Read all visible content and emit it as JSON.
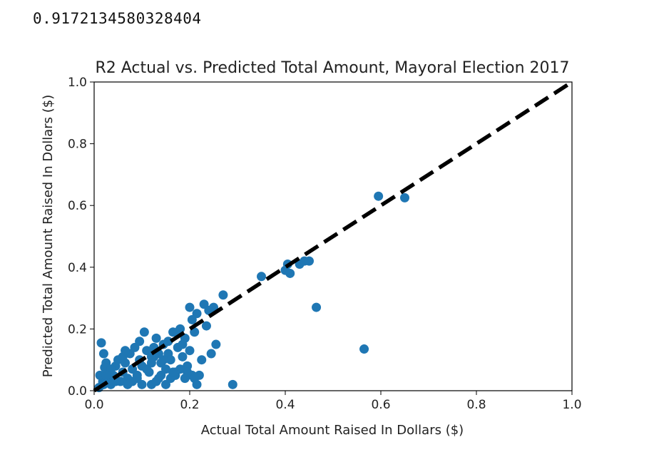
{
  "output": {
    "r2_score": "0.9172134580328404"
  },
  "chart_data": {
    "type": "scatter",
    "title": "R2 Actual vs. Predicted Total Amount, Mayoral Election 2017",
    "xlabel": "Actual Total Amount Raised In Dollars ($)",
    "ylabel": "Predicted Total Amount Raised In Dollars ($)",
    "xlim": [
      0.0,
      1.0
    ],
    "ylim": [
      0.0,
      1.0
    ],
    "xticks": [
      "0.0",
      "0.2",
      "0.4",
      "0.6",
      "0.8",
      "1.0"
    ],
    "yticks": [
      "0.0",
      "0.2",
      "0.4",
      "0.6",
      "0.8",
      "1.0"
    ],
    "grid": false,
    "point_color": "#1f77b4",
    "reference_line": {
      "from": [
        0.0,
        0.0
      ],
      "to": [
        1.0,
        1.0
      ],
      "style": "dashed",
      "color": "#000000"
    },
    "points": [
      [
        0.015,
        0.155
      ],
      [
        0.02,
        0.12
      ],
      [
        0.025,
        0.09
      ],
      [
        0.03,
        0.06
      ],
      [
        0.018,
        0.03
      ],
      [
        0.01,
        0.01
      ],
      [
        0.02,
        0.02
      ],
      [
        0.03,
        0.04
      ],
      [
        0.012,
        0.05
      ],
      [
        0.022,
        0.075
      ],
      [
        0.035,
        0.02
      ],
      [
        0.04,
        0.05
      ],
      [
        0.045,
        0.08
      ],
      [
        0.05,
        0.1
      ],
      [
        0.055,
        0.03
      ],
      [
        0.06,
        0.06
      ],
      [
        0.065,
        0.09
      ],
      [
        0.07,
        0.04
      ],
      [
        0.075,
        0.12
      ],
      [
        0.08,
        0.07
      ],
      [
        0.085,
        0.14
      ],
      [
        0.09,
        0.05
      ],
      [
        0.095,
        0.1
      ],
      [
        0.1,
        0.08
      ],
      [
        0.105,
        0.19
      ],
      [
        0.11,
        0.13
      ],
      [
        0.115,
        0.06
      ],
      [
        0.12,
        0.02
      ],
      [
        0.125,
        0.11
      ],
      [
        0.13,
        0.17
      ],
      [
        0.135,
        0.04
      ],
      [
        0.14,
        0.09
      ],
      [
        0.145,
        0.15
      ],
      [
        0.15,
        0.07
      ],
      [
        0.155,
        0.12
      ],
      [
        0.16,
        0.1
      ],
      [
        0.165,
        0.19
      ],
      [
        0.17,
        0.06
      ],
      [
        0.175,
        0.14
      ],
      [
        0.18,
        0.2
      ],
      [
        0.185,
        0.11
      ],
      [
        0.19,
        0.17
      ],
      [
        0.195,
        0.08
      ],
      [
        0.2,
        0.13
      ],
      [
        0.205,
        0.23
      ],
      [
        0.2,
        0.27
      ],
      [
        0.21,
        0.19
      ],
      [
        0.215,
        0.25
      ],
      [
        0.22,
        0.05
      ],
      [
        0.225,
        0.1
      ],
      [
        0.23,
        0.28
      ],
      [
        0.235,
        0.21
      ],
      [
        0.24,
        0.26
      ],
      [
        0.245,
        0.12
      ],
      [
        0.25,
        0.27
      ],
      [
        0.255,
        0.15
      ],
      [
        0.27,
        0.31
      ],
      [
        0.205,
        0.05
      ],
      [
        0.21,
        0.04
      ],
      [
        0.215,
        0.02
      ],
      [
        0.29,
        0.02
      ],
      [
        0.35,
        0.37
      ],
      [
        0.4,
        0.39
      ],
      [
        0.405,
        0.41
      ],
      [
        0.41,
        0.38
      ],
      [
        0.43,
        0.41
      ],
      [
        0.44,
        0.42
      ],
      [
        0.45,
        0.42
      ],
      [
        0.465,
        0.27
      ],
      [
        0.565,
        0.135
      ],
      [
        0.595,
        0.63
      ],
      [
        0.65,
        0.625
      ],
      [
        0.06,
        0.11
      ],
      [
        0.07,
        0.02
      ],
      [
        0.08,
        0.03
      ],
      [
        0.09,
        0.04
      ],
      [
        0.1,
        0.02
      ],
      [
        0.11,
        0.07
      ],
      [
        0.12,
        0.09
      ],
      [
        0.13,
        0.03
      ],
      [
        0.14,
        0.05
      ],
      [
        0.15,
        0.02
      ],
      [
        0.16,
        0.04
      ],
      [
        0.17,
        0.05
      ],
      [
        0.18,
        0.07
      ],
      [
        0.19,
        0.04
      ],
      [
        0.195,
        0.06
      ],
      [
        0.045,
        0.03
      ],
      [
        0.035,
        0.07
      ],
      [
        0.025,
        0.05
      ],
      [
        0.065,
        0.13
      ],
      [
        0.095,
        0.16
      ],
      [
        0.125,
        0.14
      ],
      [
        0.155,
        0.16
      ],
      [
        0.175,
        0.19
      ],
      [
        0.185,
        0.15
      ],
      [
        0.165,
        0.06
      ],
      [
        0.145,
        0.1
      ],
      [
        0.135,
        0.12
      ],
      [
        0.12,
        0.11
      ]
    ]
  }
}
